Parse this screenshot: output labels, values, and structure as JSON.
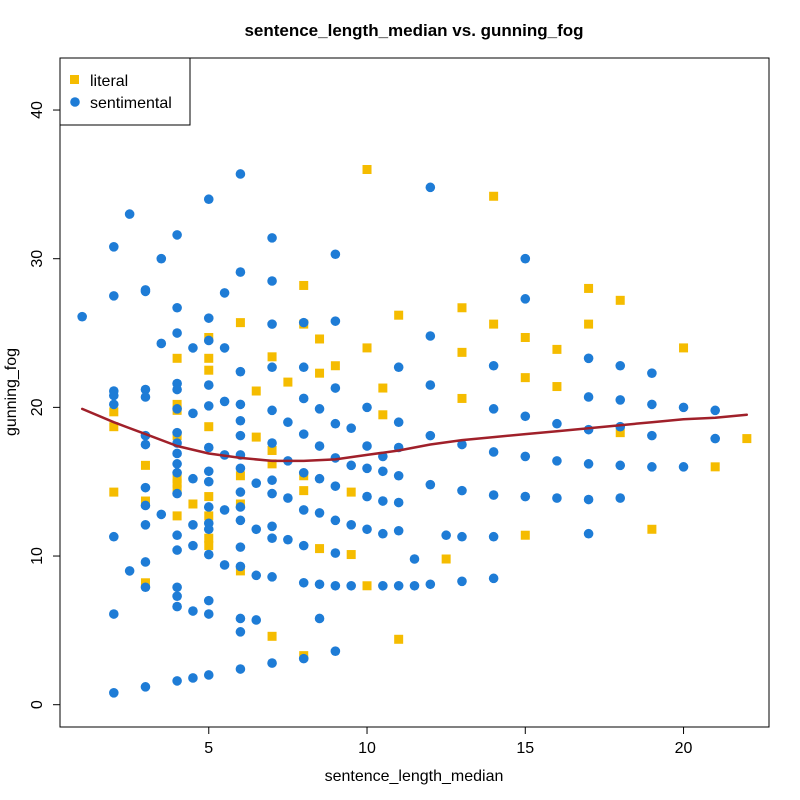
{
  "chart_data": {
    "type": "scatter",
    "title": "sentence_length_median vs. gunning_fog",
    "xlabel": "sentence_length_median",
    "ylabel": "gunning_fog",
    "xlim": [
      0.3,
      22.7
    ],
    "ylim": [
      -1.5,
      43.5
    ],
    "xticks": [
      5,
      10,
      15,
      20
    ],
    "yticks": [
      0,
      10,
      20,
      30,
      40
    ],
    "grid": false,
    "legend_position": "top-left",
    "series": [
      {
        "name": "literal",
        "marker": "square",
        "color": "#F5BC00",
        "points": [
          [
            2,
            19.7
          ],
          [
            2,
            18.7
          ],
          [
            2,
            14.3
          ],
          [
            3,
            16.1
          ],
          [
            3,
            13.7
          ],
          [
            3,
            8.2
          ],
          [
            4,
            23.3
          ],
          [
            4,
            20.2
          ],
          [
            4,
            19.8
          ],
          [
            4,
            18.1
          ],
          [
            4,
            15.2
          ],
          [
            4,
            14.9
          ],
          [
            4,
            14.5
          ],
          [
            4,
            12.7
          ],
          [
            4.5,
            13.5
          ],
          [
            5,
            24.7
          ],
          [
            5,
            23.3
          ],
          [
            5,
            22.5
          ],
          [
            5,
            18.7
          ],
          [
            5,
            14
          ],
          [
            5,
            12.7
          ],
          [
            5,
            11.2
          ],
          [
            5,
            10.7
          ],
          [
            6,
            25.7
          ],
          [
            6,
            15.4
          ],
          [
            6,
            13.5
          ],
          [
            6,
            9
          ],
          [
            6.5,
            18
          ],
          [
            6.5,
            21.1
          ],
          [
            7,
            23.4
          ],
          [
            7,
            17.1
          ],
          [
            7,
            16.2
          ],
          [
            7,
            4.6
          ],
          [
            7.5,
            21.7
          ],
          [
            8,
            28.2
          ],
          [
            8,
            25.6
          ],
          [
            8,
            15.4
          ],
          [
            8,
            14.4
          ],
          [
            8,
            3.3
          ],
          [
            8.5,
            24.6
          ],
          [
            8.5,
            22.3
          ],
          [
            8.5,
            10.5
          ],
          [
            9,
            22.8
          ],
          [
            9.5,
            14.3
          ],
          [
            9.5,
            10.1
          ],
          [
            10,
            36
          ],
          [
            10,
            24
          ],
          [
            10,
            8
          ],
          [
            10.5,
            21.3
          ],
          [
            10.5,
            19.5
          ],
          [
            11,
            26.2
          ],
          [
            11,
            4.4
          ],
          [
            12.5,
            9.8
          ],
          [
            13,
            26.7
          ],
          [
            13,
            23.7
          ],
          [
            13,
            20.6
          ],
          [
            14,
            34.2
          ],
          [
            14,
            25.6
          ],
          [
            15,
            24.7
          ],
          [
            15,
            22
          ],
          [
            15,
            11.4
          ],
          [
            16,
            23.9
          ],
          [
            16,
            21.4
          ],
          [
            17,
            28
          ],
          [
            17,
            25.6
          ],
          [
            18,
            27.2
          ],
          [
            18,
            18.3
          ],
          [
            19,
            11.8
          ],
          [
            20,
            24
          ],
          [
            21,
            16
          ],
          [
            22,
            17.9
          ]
        ]
      },
      {
        "name": "sentimental",
        "marker": "circle",
        "color": "#1E7CD6",
        "points": [
          [
            1,
            26.1
          ],
          [
            2,
            30.8
          ],
          [
            2,
            27.5
          ],
          [
            2,
            21.1
          ],
          [
            2,
            20.8
          ],
          [
            2,
            20.2
          ],
          [
            2,
            11.3
          ],
          [
            2,
            6.1
          ],
          [
            2,
            0.8
          ],
          [
            2.5,
            33
          ],
          [
            2.5,
            9
          ],
          [
            3,
            27.9
          ],
          [
            3,
            27.8
          ],
          [
            3,
            21.2
          ],
          [
            3,
            20.7
          ],
          [
            3,
            18.1
          ],
          [
            3,
            17.5
          ],
          [
            3,
            14.6
          ],
          [
            3,
            13.4
          ],
          [
            3,
            12.1
          ],
          [
            3,
            9.6
          ],
          [
            3,
            7.9
          ],
          [
            3,
            1.2
          ],
          [
            3.5,
            30
          ],
          [
            3.5,
            24.3
          ],
          [
            3.5,
            12.8
          ],
          [
            4,
            31.6
          ],
          [
            4,
            26.7
          ],
          [
            4,
            25
          ],
          [
            4,
            21.6
          ],
          [
            4,
            21.2
          ],
          [
            4,
            19.9
          ],
          [
            4,
            18.3
          ],
          [
            4,
            17.6
          ],
          [
            4,
            16.9
          ],
          [
            4,
            16.2
          ],
          [
            4,
            15.6
          ],
          [
            4,
            14.2
          ],
          [
            4,
            11.4
          ],
          [
            4,
            10.4
          ],
          [
            4,
            7.9
          ],
          [
            4,
            7.3
          ],
          [
            4,
            6.6
          ],
          [
            4,
            1.6
          ],
          [
            4.5,
            24
          ],
          [
            4.5,
            19.6
          ],
          [
            4.5,
            15.2
          ],
          [
            4.5,
            12.1
          ],
          [
            4.5,
            10.7
          ],
          [
            4.5,
            6.3
          ],
          [
            4.5,
            1.8
          ],
          [
            5,
            34
          ],
          [
            5,
            26
          ],
          [
            5,
            24.5
          ],
          [
            5,
            21.5
          ],
          [
            5,
            20.1
          ],
          [
            5,
            17.3
          ],
          [
            5,
            15.7
          ],
          [
            5,
            15
          ],
          [
            5,
            13.3
          ],
          [
            5,
            12.2
          ],
          [
            5,
            11.8
          ],
          [
            5,
            10.1
          ],
          [
            5,
            7
          ],
          [
            5,
            6.1
          ],
          [
            5,
            2
          ],
          [
            5.5,
            27.7
          ],
          [
            5.5,
            24
          ],
          [
            5.5,
            20.4
          ],
          [
            5.5,
            16.8
          ],
          [
            5.5,
            13.1
          ],
          [
            5.5,
            9.4
          ],
          [
            6,
            35.7
          ],
          [
            6,
            29.1
          ],
          [
            6,
            22.4
          ],
          [
            6,
            20.2
          ],
          [
            6,
            19.1
          ],
          [
            6,
            18.1
          ],
          [
            6,
            16.8
          ],
          [
            6,
            15.9
          ],
          [
            6,
            14.3
          ],
          [
            6,
            13.3
          ],
          [
            6,
            12.4
          ],
          [
            6,
            10.6
          ],
          [
            6,
            9.3
          ],
          [
            6,
            5.8
          ],
          [
            6,
            4.9
          ],
          [
            6,
            2.4
          ],
          [
            6.5,
            14.9
          ],
          [
            6.5,
            11.8
          ],
          [
            6.5,
            8.7
          ],
          [
            6.5,
            5.7
          ],
          [
            7,
            31.4
          ],
          [
            7,
            28.5
          ],
          [
            7,
            25.6
          ],
          [
            7,
            22.7
          ],
          [
            7,
            19.8
          ],
          [
            7,
            17.6
          ],
          [
            7,
            15.1
          ],
          [
            7,
            14.2
          ],
          [
            7,
            12
          ],
          [
            7,
            11.2
          ],
          [
            7,
            8.6
          ],
          [
            7,
            2.8
          ],
          [
            7.5,
            19
          ],
          [
            7.5,
            16.4
          ],
          [
            7.5,
            13.9
          ],
          [
            7.5,
            11.1
          ],
          [
            8,
            25.7
          ],
          [
            8,
            22.7
          ],
          [
            8,
            20.6
          ],
          [
            8,
            18.2
          ],
          [
            8,
            15.6
          ],
          [
            8,
            13.1
          ],
          [
            8,
            10.7
          ],
          [
            8,
            8.2
          ],
          [
            8,
            3.1
          ],
          [
            8.5,
            19.9
          ],
          [
            8.5,
            17.4
          ],
          [
            8.5,
            15.2
          ],
          [
            8.5,
            12.9
          ],
          [
            8.5,
            8.1
          ],
          [
            8.5,
            5.8
          ],
          [
            9,
            30.3
          ],
          [
            9,
            25.8
          ],
          [
            9,
            21.3
          ],
          [
            9,
            18.9
          ],
          [
            9,
            16.6
          ],
          [
            9,
            14.7
          ],
          [
            9,
            12.4
          ],
          [
            9,
            10.2
          ],
          [
            9,
            8
          ],
          [
            9,
            3.6
          ],
          [
            9.5,
            18.6
          ],
          [
            9.5,
            16.1
          ],
          [
            9.5,
            12.1
          ],
          [
            9.5,
            8
          ],
          [
            10,
            20
          ],
          [
            10,
            17.4
          ],
          [
            10,
            15.9
          ],
          [
            10,
            14
          ],
          [
            10,
            11.8
          ],
          [
            10.5,
            16.7
          ],
          [
            10.5,
            15.7
          ],
          [
            10.5,
            13.7
          ],
          [
            10.5,
            11.5
          ],
          [
            10.5,
            8
          ],
          [
            11,
            22.7
          ],
          [
            11,
            19
          ],
          [
            11,
            17.3
          ],
          [
            11,
            15.4
          ],
          [
            11,
            13.6
          ],
          [
            11,
            11.7
          ],
          [
            11,
            8
          ],
          [
            11.5,
            9.8
          ],
          [
            11.5,
            8
          ],
          [
            12,
            34.8
          ],
          [
            12,
            24.8
          ],
          [
            12,
            21.5
          ],
          [
            12,
            18.1
          ],
          [
            12,
            14.8
          ],
          [
            12,
            8.1
          ],
          [
            12.5,
            11.4
          ],
          [
            13,
            17.5
          ],
          [
            13,
            14.4
          ],
          [
            13,
            11.3
          ],
          [
            13,
            8.3
          ],
          [
            14,
            22.8
          ],
          [
            14,
            19.9
          ],
          [
            14,
            17
          ],
          [
            14,
            14.1
          ],
          [
            14,
            11.3
          ],
          [
            14,
            8.5
          ],
          [
            15,
            30
          ],
          [
            15,
            27.3
          ],
          [
            15,
            19.4
          ],
          [
            15,
            16.7
          ],
          [
            15,
            14
          ],
          [
            16,
            18.9
          ],
          [
            16,
            16.4
          ],
          [
            16,
            13.9
          ],
          [
            17,
            23.3
          ],
          [
            17,
            20.7
          ],
          [
            17,
            18.5
          ],
          [
            17,
            16.2
          ],
          [
            17,
            13.8
          ],
          [
            17,
            11.5
          ],
          [
            18,
            22.8
          ],
          [
            18,
            20.5
          ],
          [
            18,
            18.7
          ],
          [
            18,
            16.1
          ],
          [
            18,
            13.9
          ],
          [
            19,
            22.3
          ],
          [
            19,
            20.2
          ],
          [
            19,
            18.1
          ],
          [
            19,
            16
          ],
          [
            20,
            20
          ],
          [
            20,
            16
          ],
          [
            21,
            19.8
          ],
          [
            21,
            17.9
          ]
        ]
      }
    ],
    "trend_line": {
      "color": "#A0202A",
      "points": [
        [
          1,
          19.9
        ],
        [
          2,
          19
        ],
        [
          3,
          18.2
        ],
        [
          4,
          17.4
        ],
        [
          5,
          16.9
        ],
        [
          6,
          16.6
        ],
        [
          7,
          16.4
        ],
        [
          8,
          16.4
        ],
        [
          9,
          16.5
        ],
        [
          10,
          16.8
        ],
        [
          11,
          17.1
        ],
        [
          12,
          17.5
        ],
        [
          13,
          17.8
        ],
        [
          14,
          18
        ],
        [
          15,
          18.2
        ],
        [
          16,
          18.4
        ],
        [
          17,
          18.6
        ],
        [
          18,
          18.8
        ],
        [
          19,
          19
        ],
        [
          20,
          19.2
        ],
        [
          21,
          19.3
        ],
        [
          22,
          19.5
        ]
      ]
    }
  }
}
